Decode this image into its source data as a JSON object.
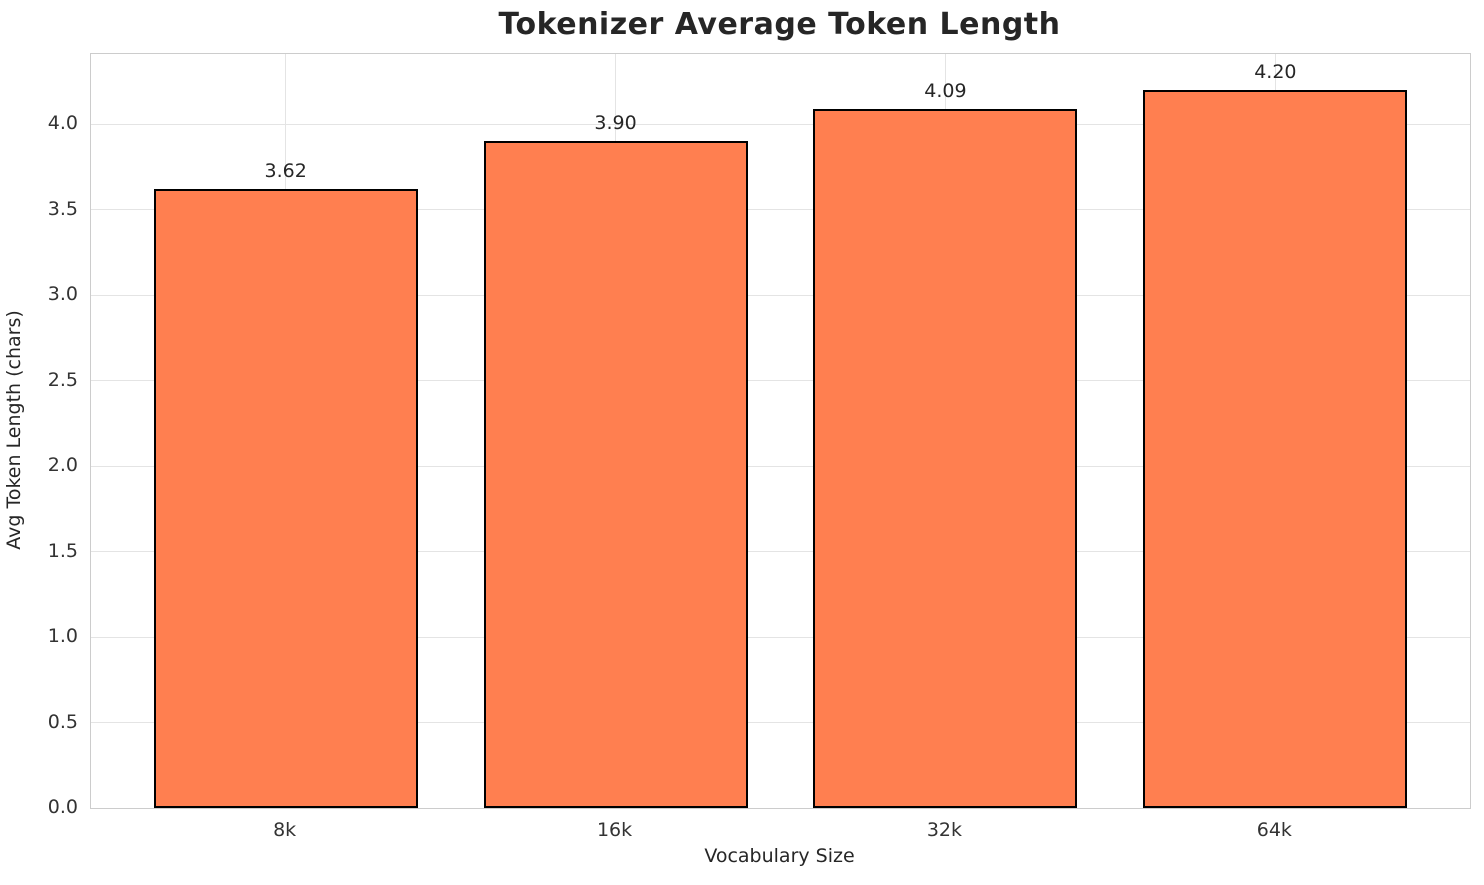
{
  "chart_data": {
    "type": "bar",
    "title": "Tokenizer Average Token Length",
    "xlabel": "Vocabulary Size",
    "ylabel": "Avg Token Length (chars)",
    "categories": [
      "8k",
      "16k",
      "32k",
      "64k"
    ],
    "values": [
      3.62,
      3.9,
      4.09,
      4.2
    ],
    "bar_labels": [
      "3.62",
      "3.90",
      "4.09",
      "4.20"
    ],
    "yticks": [
      {
        "value": 0.0,
        "label": "0.0"
      },
      {
        "value": 0.5,
        "label": "0.5"
      },
      {
        "value": 1.0,
        "label": "1.0"
      },
      {
        "value": 1.5,
        "label": "1.5"
      },
      {
        "value": 2.0,
        "label": "2.0"
      },
      {
        "value": 2.5,
        "label": "2.5"
      },
      {
        "value": 3.0,
        "label": "3.0"
      },
      {
        "value": 3.5,
        "label": "3.5"
      },
      {
        "value": 4.0,
        "label": "4.0"
      }
    ],
    "ylim": [
      0,
      4.41
    ],
    "xlim": [
      -0.59,
      3.59
    ],
    "bar_width_units": 0.8,
    "grid": true,
    "legend_position": "none",
    "colors": {
      "bar_fill": "#FF7F50",
      "bar_edge": "#000000",
      "grid_line": "#E4E4E4",
      "spine": "#CCCCCC",
      "text": "#262626",
      "background": "#FFFFFF"
    }
  }
}
